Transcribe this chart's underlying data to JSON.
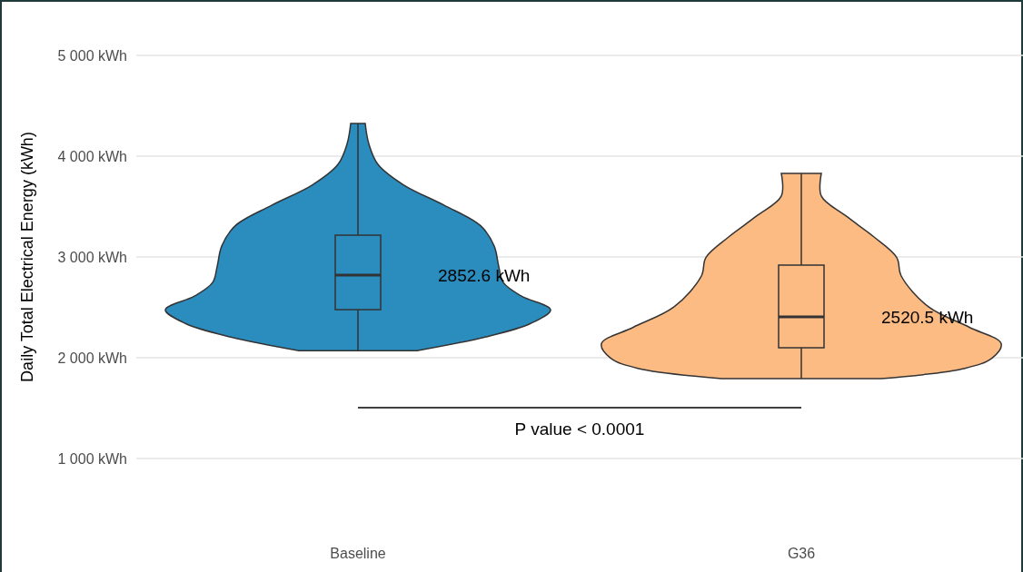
{
  "chart_data": {
    "type": "box",
    "ylabel": "Daily Total Electrical Energy (kWh)",
    "categories": [
      "Baseline",
      "G36"
    ],
    "colors": [
      "#2b8cbe",
      "#fdbb84"
    ],
    "boxes": [
      {
        "low": 2070,
        "q1": 2477,
        "median": 2820,
        "q3": 3216,
        "high": 4324
      },
      {
        "low": 1793,
        "q1": 2099,
        "median": 2405,
        "q3": 2919,
        "high": 3829
      }
    ],
    "ylim": [
      1000,
      5000
    ],
    "yticks": [
      {
        "value": 1000,
        "label": "1 000 kWh"
      },
      {
        "value": 2000,
        "label": "2 000 kWh"
      },
      {
        "value": 3000,
        "label": "3 000 kWh"
      },
      {
        "value": 4000,
        "label": "4 000 kWh"
      },
      {
        "value": 5000,
        "label": "5 000 kWh"
      }
    ],
    "grid": "y",
    "annotations": [
      "2852.6 kWh",
      "2520.5 kWh",
      "P value < 0.0001"
    ]
  }
}
